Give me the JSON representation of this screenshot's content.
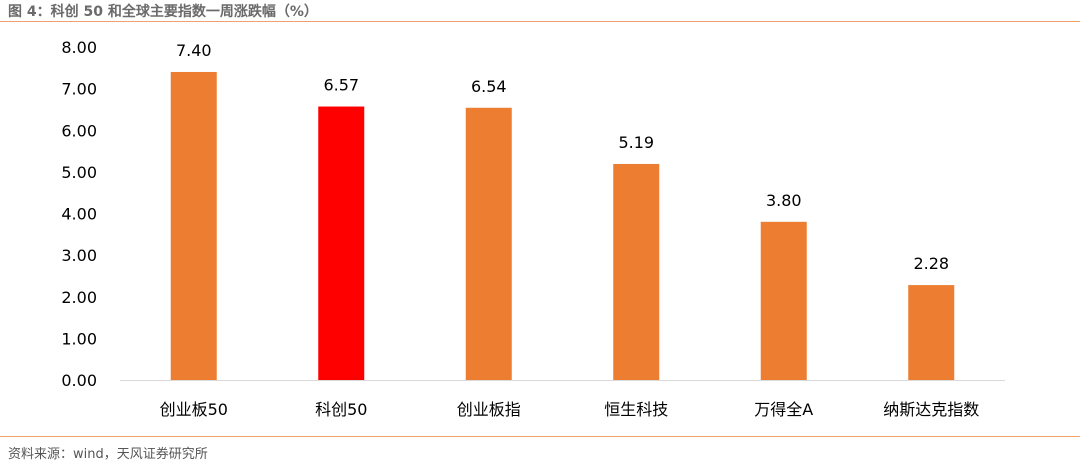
{
  "figure": {
    "title": "图 4：科创 50 和全球主要指数一周涨跌幅（%）",
    "source": "资料来源：wind，天风证券研究所"
  },
  "chart_data": {
    "type": "bar",
    "categories": [
      "创业板50",
      "科创50",
      "创业板指",
      "恒生科技",
      "万得全A",
      "纳斯达克指数"
    ],
    "values": [
      7.4,
      6.57,
      6.54,
      5.19,
      3.8,
      2.28
    ],
    "value_labels": [
      "7.40",
      "6.57",
      "6.54",
      "5.19",
      "3.80",
      "2.28"
    ],
    "y_ticks": [
      "0.00",
      "1.00",
      "2.00",
      "3.00",
      "4.00",
      "5.00",
      "6.00",
      "7.00",
      "8.00"
    ],
    "ylim": [
      0,
      8
    ],
    "grid": false,
    "colors": {
      "default": "#ED7D31",
      "highlight": "#FF0000",
      "axis": "#D9D9D9",
      "text": "#000000"
    },
    "highlight_index": 1
  }
}
